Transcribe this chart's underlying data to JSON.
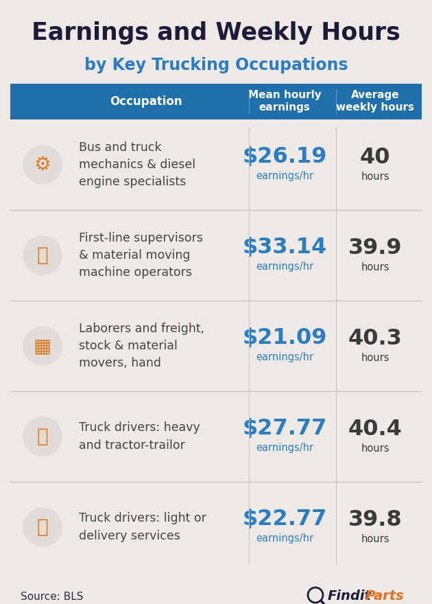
{
  "title": "Earnings and Weekly Hours",
  "subtitle": "by Key Trucking Occupations",
  "title_color": "#1c1c3a",
  "subtitle_color": "#2b7dc0",
  "background_color": "#edeae6",
  "header_bg_color": "#1f6fab",
  "header_text_color": "#ffffff",
  "divider_color": "#c8c4be",
  "earnings_color": "#2b7dc0",
  "hours_color": "#3a3a3a",
  "occupation_color": "#444444",
  "source_color": "#2a2a4a",
  "source_text": "Source: BLS",
  "col_occupation": "Occupation",
  "col_earnings": "Mean hourly\nearnings",
  "col_hours": "Average\nweekly hours",
  "rows": [
    {
      "occupation": "Bus and truck\nmechanics & diesel\nengine specialists",
      "earnings": "$26.19",
      "hours": "40",
      "earnings_sub": "earnings/hr",
      "hours_sub": "hours"
    },
    {
      "occupation": "First-line supervisors\n& material moving\nmachine operators",
      "earnings": "$33.14",
      "hours": "39.9",
      "earnings_sub": "earnings/hr",
      "hours_sub": "hours"
    },
    {
      "occupation": "Laborers and freight,\nstock & material\nmovers, hand",
      "earnings": "$21.09",
      "hours": "40.3",
      "earnings_sub": "earnings/hr",
      "hours_sub": "hours"
    },
    {
      "occupation": "Truck drivers: heavy\nand tractor-trailor",
      "earnings": "$27.77",
      "hours": "40.4",
      "earnings_sub": "earnings/hr",
      "hours_sub": "hours"
    },
    {
      "occupation": "Truck drivers: light or\ndelivery services",
      "earnings": "$22.77",
      "hours": "39.8",
      "earnings_sub": "earnings/hr",
      "hours_sub": "hours"
    }
  ]
}
